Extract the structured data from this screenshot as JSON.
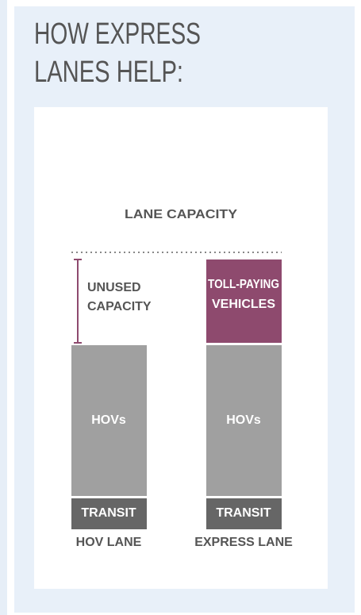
{
  "title_lines": [
    "HOW EXPRESS",
    "LANES HELP:"
  ],
  "diagram": {
    "heading": "LANE CAPACITY",
    "unused_label": [
      "UNUSED",
      "CAPACITY"
    ],
    "lanes": [
      {
        "name": "HOV LANE",
        "segments": [
          "HOVs",
          "TRANSIT"
        ]
      },
      {
        "name": "EXPRESS LANE",
        "segments": [
          [
            "TOLL-PAYING",
            "VEHICLES"
          ],
          "HOVs",
          "TRANSIT"
        ]
      }
    ]
  }
}
